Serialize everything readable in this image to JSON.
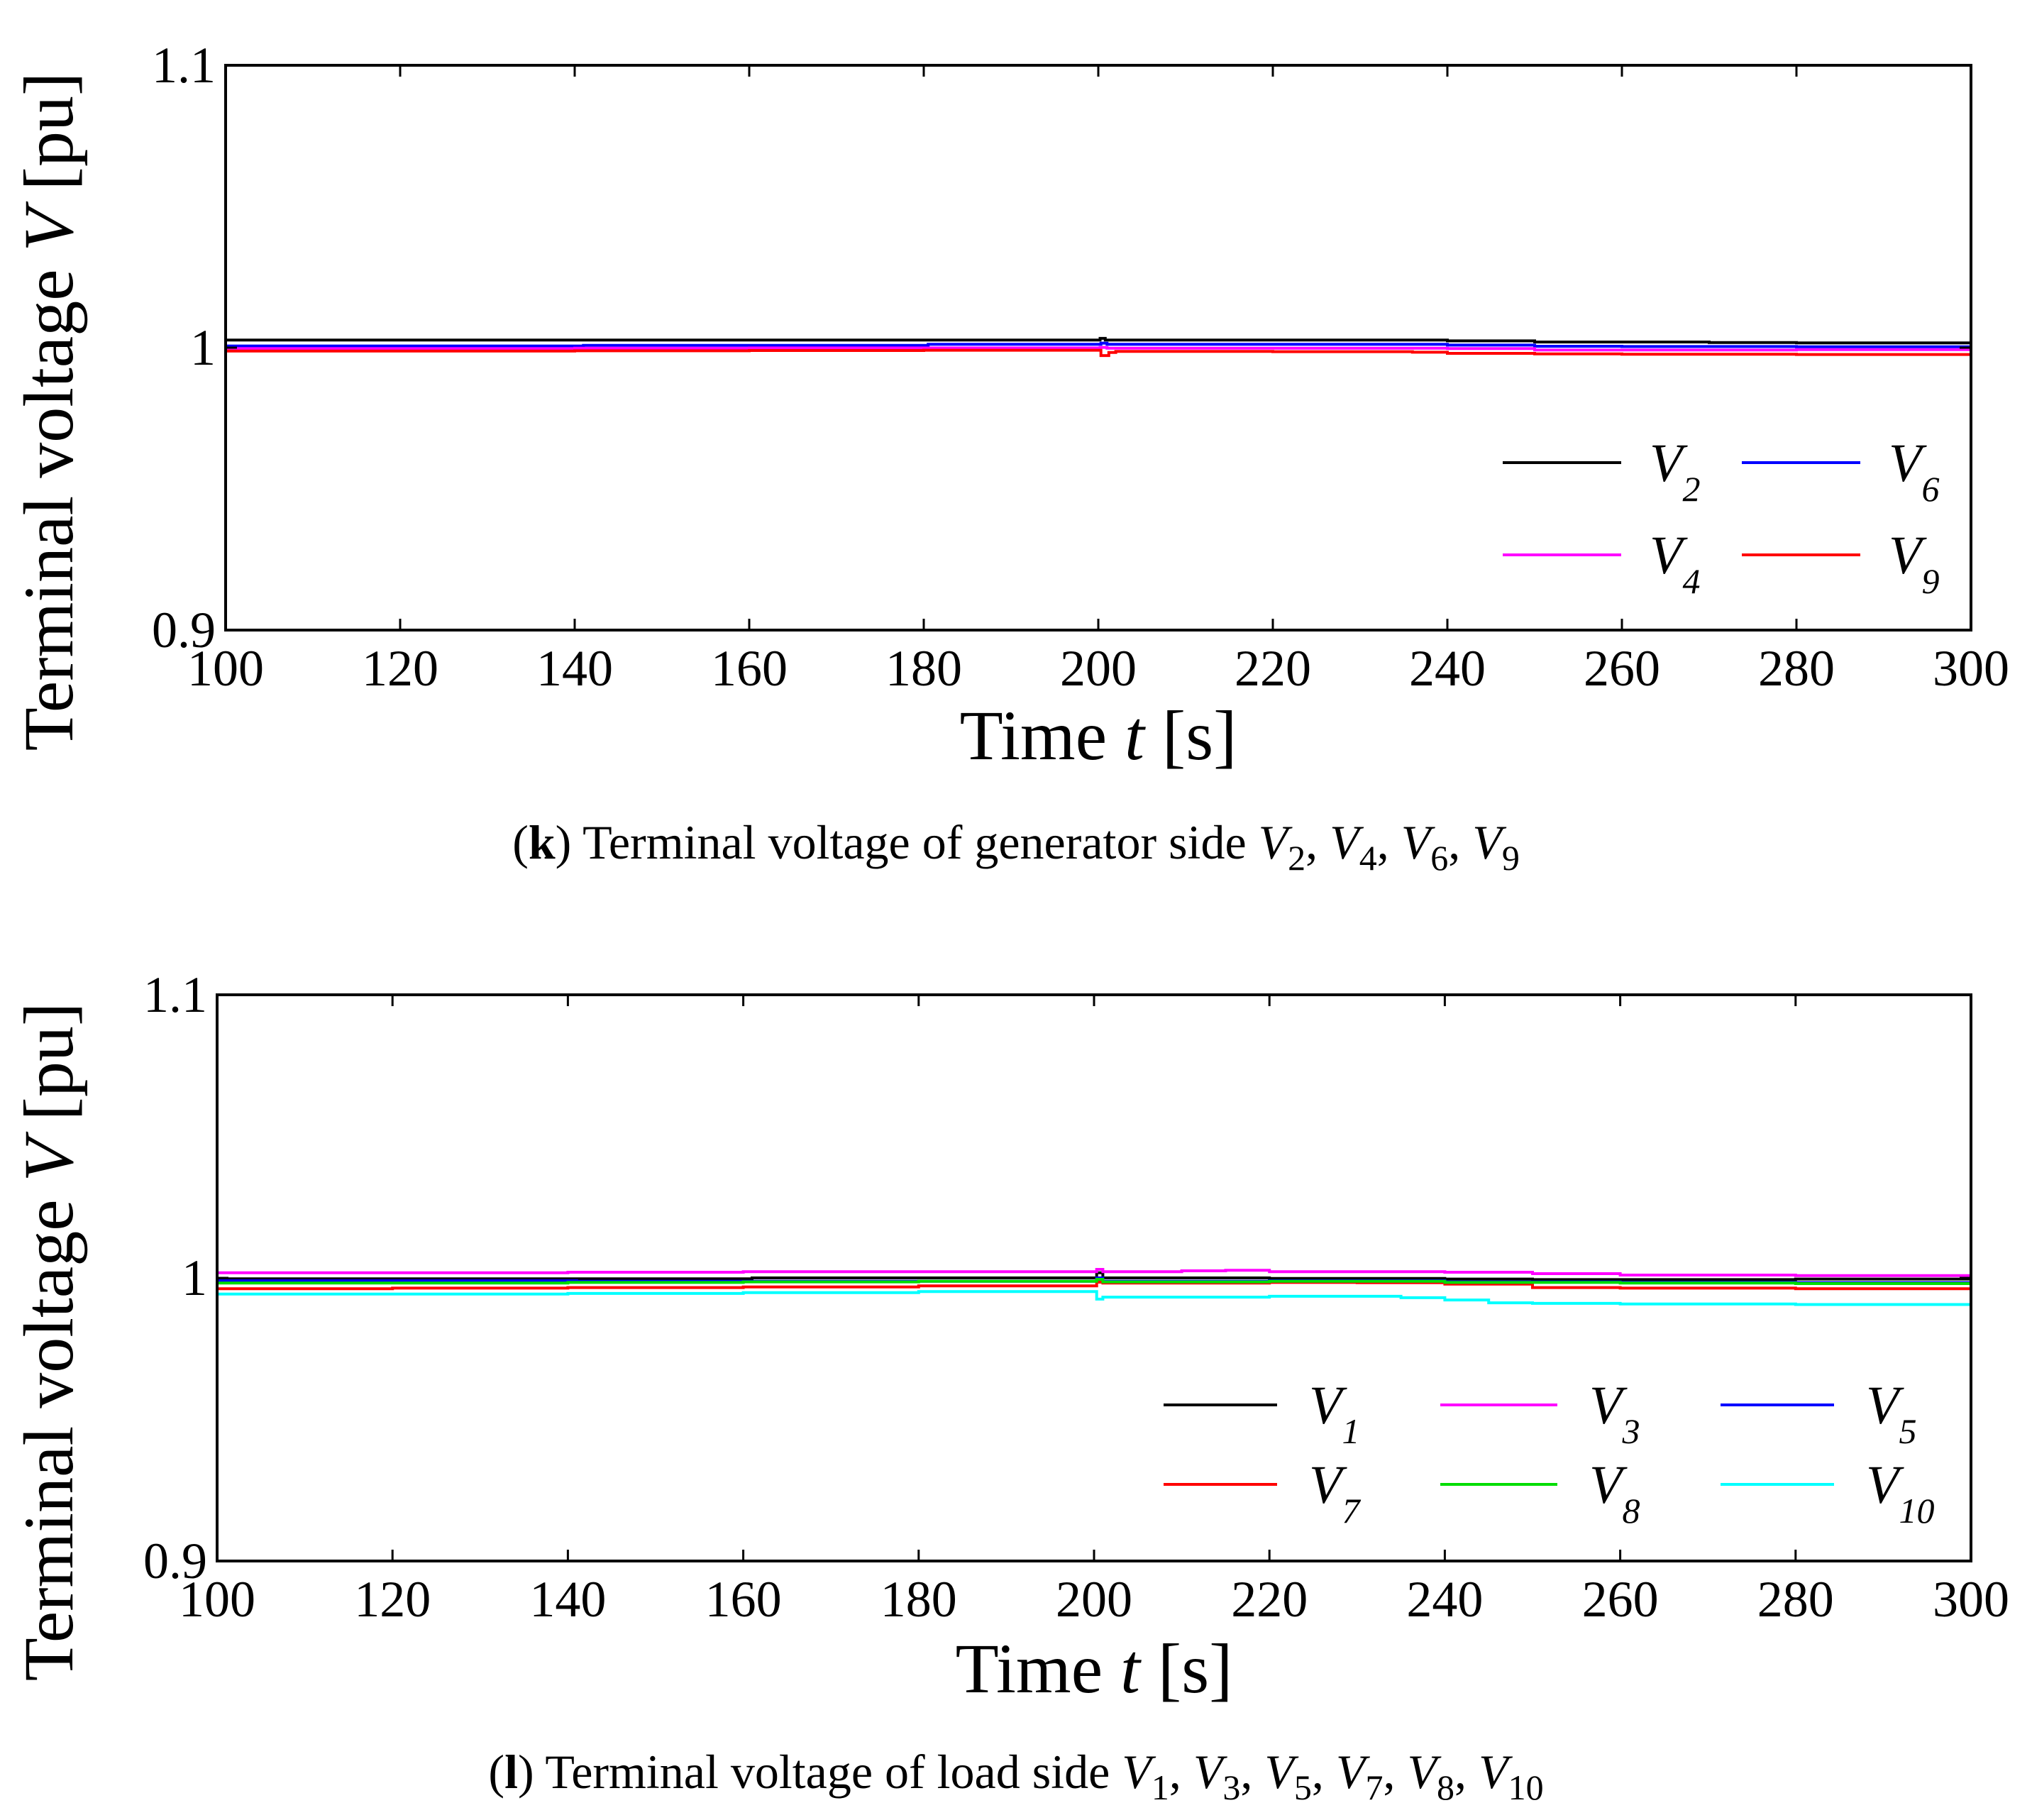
{
  "chart_data": [
    {
      "type": "line",
      "panel_letter": "k",
      "caption_text": "Terminal voltage of generator side",
      "caption_vars": [
        {
          "base": "V",
          "sub": "2"
        },
        {
          "base": "V",
          "sub": "4"
        },
        {
          "base": "V",
          "sub": "6"
        },
        {
          "base": "V",
          "sub": "9"
        }
      ],
      "xlabel_text": "Time",
      "xlabel_var": "t",
      "xlabel_unit": "[s]",
      "ylabel_text": "Terminal voltage",
      "ylabel_var": "V",
      "ylabel_unit": "[pu]",
      "xlim": [
        100,
        300
      ],
      "ylim": [
        0.9,
        1.1
      ],
      "xticks": [
        100,
        120,
        140,
        160,
        180,
        200,
        220,
        240,
        260,
        280,
        300
      ],
      "xtick_labels": [
        "100",
        "120",
        "140",
        "160",
        "180",
        "200",
        "220",
        "240",
        "260",
        "280",
        "300"
      ],
      "yticks": [
        0.9,
        1.0,
        1.1
      ],
      "ytick_labels": [
        "0.9",
        "1",
        "1.1"
      ],
      "grid": false,
      "legend_position": "lower-right",
      "legend_columns": 2,
      "series": [
        {
          "name": "V2",
          "label": "V",
          "sub": "2",
          "color": "#000000",
          "x": [
            100,
            120,
            140,
            160,
            180,
            199.5,
            200.2,
            200.8,
            220,
            235,
            240,
            250,
            260,
            270,
            280,
            290,
            300
          ],
          "y": [
            1.0027,
            1.0027,
            1.0027,
            1.0027,
            1.0027,
            1.0027,
            1.0033,
            1.0027,
            1.0027,
            1.0027,
            1.0024,
            1.002,
            1.002,
            1.0018,
            1.0017,
            1.0017,
            1.0016
          ]
        },
        {
          "name": "V6",
          "label": "V",
          "sub": "6",
          "color": "#0000ff",
          "x": [
            100,
            140,
            141,
            180,
            180.5,
            199.5,
            200.3,
            201,
            220,
            235,
            240,
            250,
            260,
            280,
            300
          ],
          "y": [
            1.0006,
            1.0006,
            1.0008,
            1.0008,
            1.0012,
            1.0012,
            1.0016,
            1.0012,
            1.0012,
            1.0012,
            1.0009,
            1.0005,
            1.0004,
            1.0003,
            1.0002
          ]
        },
        {
          "name": "V4",
          "label": "V",
          "sub": "4",
          "color": "#ff00ff",
          "x": [
            100,
            140,
            160,
            199.5,
            200.2,
            201,
            220,
            240,
            250,
            260,
            280,
            300
          ],
          "y": [
            0.9997,
            0.9998,
            0.9999,
            0.9999,
            1.0001,
            0.9998,
            0.9998,
            0.9997,
            0.9992,
            0.9992,
            0.9993,
            0.9993
          ]
        },
        {
          "name": "V9",
          "label": "V",
          "sub": "9",
          "color": "#ff0000",
          "x": [
            100,
            140,
            160,
            180,
            199.5,
            200.3,
            201.2,
            202,
            220,
            236,
            240,
            250,
            260,
            280,
            300
          ],
          "y": [
            0.9988,
            0.9989,
            0.999,
            0.9991,
            0.9991,
            0.9972,
            0.9983,
            0.9987,
            0.9986,
            0.9984,
            0.998,
            0.9978,
            0.9977,
            0.9976,
            0.9975
          ]
        }
      ]
    },
    {
      "type": "line",
      "panel_letter": "l",
      "caption_text": "Terminal voltage of load side",
      "caption_vars": [
        {
          "base": "V",
          "sub": "1"
        },
        {
          "base": "V",
          "sub": "3"
        },
        {
          "base": "V",
          "sub": "5"
        },
        {
          "base": "V",
          "sub": "7"
        },
        {
          "base": "V",
          "sub": "8"
        },
        {
          "base": "V",
          "sub": "10"
        }
      ],
      "xlabel_text": "Time",
      "xlabel_var": "t",
      "xlabel_unit": "[s]",
      "ylabel_text": "Terminal voltage",
      "ylabel_var": "V",
      "ylabel_unit": "[pu]",
      "xlim": [
        100,
        300
      ],
      "ylim": [
        0.9,
        1.1
      ],
      "xticks": [
        100,
        120,
        140,
        160,
        180,
        200,
        220,
        240,
        260,
        280,
        300
      ],
      "xtick_labels": [
        "100",
        "120",
        "140",
        "160",
        "180",
        "200",
        "220",
        "240",
        "260",
        "280",
        "300"
      ],
      "yticks": [
        0.9,
        1.0,
        1.1
      ],
      "ytick_labels": [
        "0.9",
        "1",
        "1.1"
      ],
      "grid": false,
      "legend_position": "lower-right",
      "legend_columns": 3,
      "series": [
        {
          "name": "V1",
          "label": "V",
          "sub": "1",
          "color": "#000000",
          "x": [
            100,
            160,
            161,
            199.5,
            200.3,
            201,
            220,
            240,
            250,
            280,
            300
          ],
          "y": [
            0.9997,
            0.9997,
            1.0,
            1.0,
            1.0018,
            1.0,
            0.9998,
            0.9996,
            0.9994,
            0.9996,
            0.9996
          ]
        },
        {
          "name": "V3",
          "label": "V",
          "sub": "3",
          "color": "#ff00ff",
          "x": [
            100,
            140,
            160,
            199.5,
            200.3,
            201,
            210,
            215,
            220,
            240,
            250,
            260,
            280,
            300
          ],
          "y": [
            1.0018,
            1.002,
            1.0022,
            1.0022,
            1.003,
            1.0022,
            1.0025,
            1.0027,
            1.0022,
            1.002,
            1.0015,
            1.001,
            1.0008,
            1.0008
          ]
        },
        {
          "name": "V5",
          "label": "V",
          "sub": "5",
          "color": "#0000ff",
          "x": [
            100,
            140,
            141,
            199.5,
            200.3,
            201,
            220,
            240,
            260,
            280,
            300
          ],
          "y": [
            0.999,
            0.999,
            0.9988,
            0.9988,
            1.0,
            0.9988,
            0.999,
            0.9986,
            0.9984,
            0.9983,
            0.9983
          ]
        },
        {
          "name": "V7",
          "label": "V",
          "sub": "7",
          "color": "#ff0000",
          "x": [
            100,
            120,
            140,
            160,
            180,
            199.5,
            200.3,
            201,
            220,
            230,
            240,
            250,
            260,
            280,
            300
          ],
          "y": [
            0.9962,
            0.9964,
            0.9966,
            0.9968,
            0.9972,
            0.9972,
            0.9985,
            0.9982,
            0.9984,
            0.9983,
            0.9978,
            0.9966,
            0.9964,
            0.9962,
            0.9962
          ]
        },
        {
          "name": "V8",
          "label": "V",
          "sub": "8",
          "color": "#00dd00",
          "x": [
            100,
            140,
            160,
            180,
            199.5,
            200.3,
            201,
            220,
            240,
            260,
            280,
            300
          ],
          "y": [
            0.9982,
            0.9984,
            0.9986,
            0.9988,
            0.9988,
            0.9995,
            0.9986,
            0.9988,
            0.9984,
            0.9982,
            0.998,
            0.998
          ]
        },
        {
          "name": "V10",
          "label": "V",
          "sub": "10",
          "color": "#00ffff",
          "x": [
            100,
            140,
            160,
            180,
            199.5,
            200.3,
            201,
            220,
            235,
            240,
            245,
            250,
            260,
            280,
            300
          ],
          "y": [
            0.9943,
            0.9945,
            0.9948,
            0.9952,
            0.9952,
            0.9925,
            0.9932,
            0.9935,
            0.993,
            0.9922,
            0.9912,
            0.991,
            0.9908,
            0.9906,
            0.9905
          ]
        }
      ]
    }
  ]
}
